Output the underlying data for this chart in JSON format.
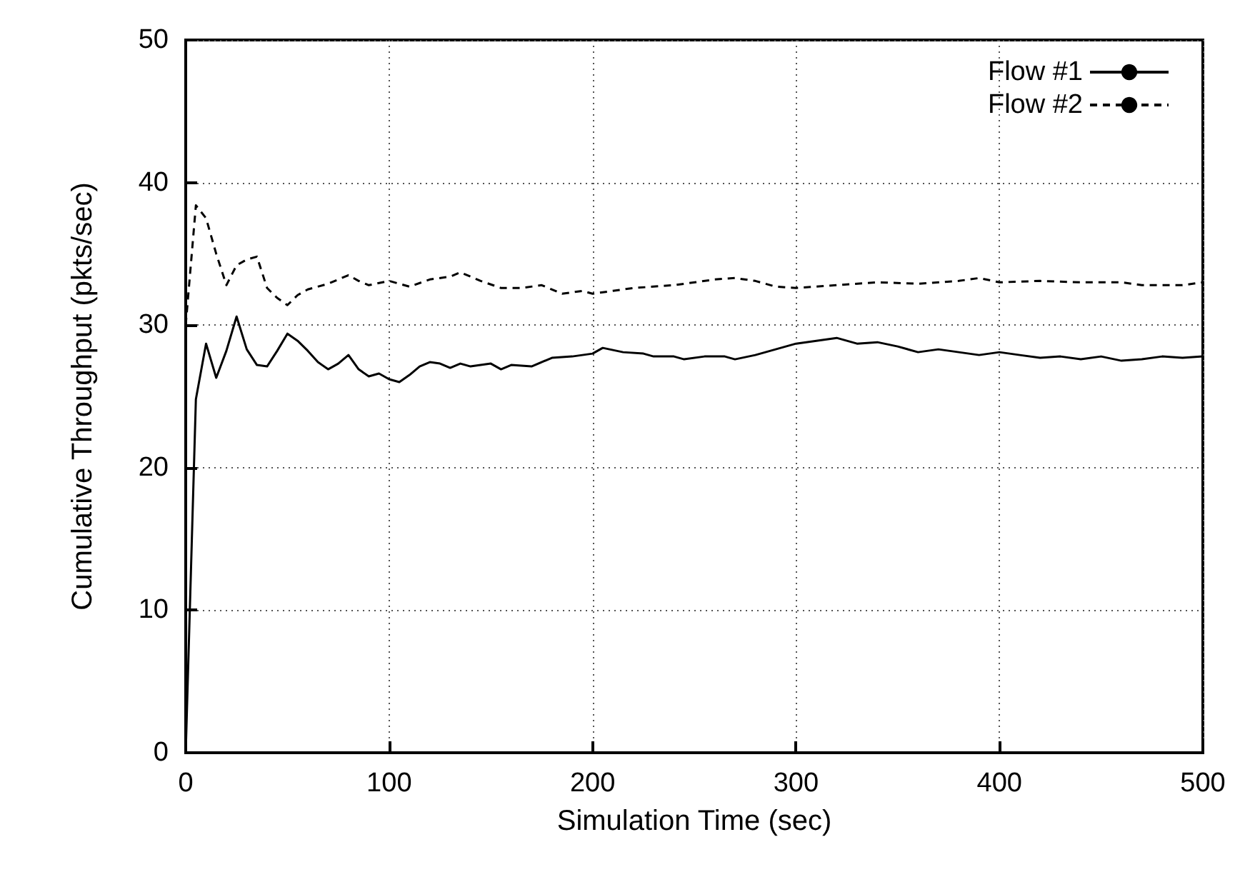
{
  "chart_data": {
    "type": "line",
    "xlabel": "Simulation Time (sec)",
    "ylabel": "Cumulative Throughput (pkts/sec)",
    "xlim": [
      0,
      500
    ],
    "xticks": [
      0,
      100,
      200,
      300,
      400,
      500
    ],
    "ylim": [
      0,
      50
    ],
    "yticks": [
      0,
      10,
      20,
      30,
      40,
      50
    ],
    "grid": true,
    "legend": "top right",
    "marker": "none",
    "series": [
      {
        "name": "Flow #1",
        "color": "#000000",
        "line_style": "solid",
        "x": [
          0,
          5,
          10,
          15,
          20,
          25,
          30,
          35,
          40,
          45,
          50,
          55,
          60,
          65,
          70,
          75,
          80,
          85,
          90,
          95,
          100,
          105,
          110,
          115,
          120,
          125,
          130,
          135,
          140,
          145,
          150,
          155,
          160,
          170,
          180,
          190,
          200,
          205,
          215,
          225,
          230,
          240,
          245,
          255,
          265,
          270,
          280,
          290,
          300,
          310,
          320,
          330,
          340,
          350,
          360,
          370,
          380,
          390,
          400,
          410,
          420,
          430,
          440,
          450,
          460,
          470,
          480,
          490,
          500
        ],
        "values": [
          0,
          24.8,
          28.7,
          26.3,
          28.2,
          30.6,
          28.3,
          27.2,
          27.1,
          28.2,
          29.4,
          28.9,
          28.2,
          27.4,
          26.9,
          27.3,
          27.9,
          26.9,
          26.4,
          26.6,
          26.2,
          26,
          26.5,
          27.1,
          27.4,
          27.3,
          27,
          27.3,
          27.1,
          27.2,
          27.3,
          26.9,
          27.2,
          27.1,
          27.7,
          27.8,
          28,
          28.4,
          28.1,
          28,
          27.8,
          27.8,
          27.6,
          27.8,
          27.8,
          27.6,
          27.9,
          28.3,
          28.7,
          28.9,
          29.1,
          28.7,
          28.8,
          28.5,
          28.1,
          28.3,
          28.1,
          27.9,
          28.1,
          27.9,
          27.7,
          27.8,
          27.6,
          27.8,
          27.5,
          27.6,
          27.8,
          27.7,
          27.8
        ]
      },
      {
        "name": "Flow #2",
        "color": "#000000",
        "line_style": "dashed",
        "x": [
          0,
          5,
          10,
          15,
          20,
          25,
          30,
          35,
          40,
          45,
          50,
          55,
          60,
          70,
          80,
          85,
          90,
          100,
          110,
          120,
          130,
          135,
          145,
          155,
          165,
          175,
          185,
          195,
          200,
          210,
          220,
          240,
          260,
          270,
          280,
          290,
          300,
          320,
          340,
          360,
          380,
          390,
          400,
          420,
          440,
          460,
          470,
          490,
          500
        ],
        "values": [
          30,
          38.4,
          37.5,
          35,
          32.8,
          34.2,
          34.6,
          34.8,
          32.6,
          31.9,
          31.4,
          32.1,
          32.5,
          32.9,
          33.5,
          33.1,
          32.8,
          33.1,
          32.7,
          33.2,
          33.4,
          33.7,
          33.1,
          32.6,
          32.6,
          32.8,
          32.2,
          32.4,
          32.2,
          32.4,
          32.6,
          32.8,
          33.2,
          33.3,
          33.1,
          32.7,
          32.6,
          32.8,
          33,
          32.9,
          33.1,
          33.3,
          33,
          33.1,
          33,
          33,
          32.8,
          32.8,
          33
        ]
      }
    ]
  }
}
